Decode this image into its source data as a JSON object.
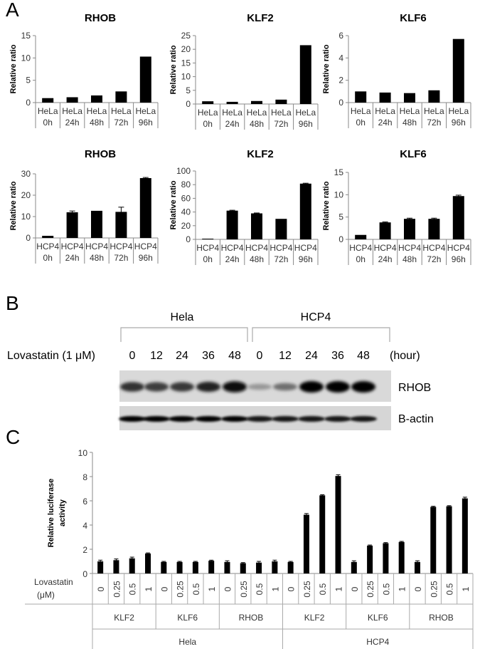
{
  "panels": {
    "a": "A",
    "b": "B",
    "c": "C"
  },
  "chart_data": [
    {
      "type": "bar",
      "title": "RHOB",
      "ylabel": "Relative ratio",
      "ylim": [
        0,
        15
      ],
      "yticks": [
        0,
        5,
        10,
        15
      ],
      "categories": [
        [
          "HeLa",
          "0h"
        ],
        [
          "HeLa",
          "24h"
        ],
        [
          "HeLa",
          "48h"
        ],
        [
          "HeLa",
          "72h"
        ],
        [
          "HeLa",
          "96h"
        ]
      ],
      "values": [
        1.0,
        1.2,
        1.6,
        2.5,
        10.3
      ],
      "errors": [
        0,
        0,
        0,
        0,
        0
      ]
    },
    {
      "type": "bar",
      "title": "KLF2",
      "ylabel": "Relative ratio",
      "ylim": [
        0,
        25
      ],
      "yticks": [
        0,
        5,
        10,
        15,
        20,
        25
      ],
      "categories": [
        [
          "HeLa",
          "0h"
        ],
        [
          "HeLa",
          "24h"
        ],
        [
          "HeLa",
          "48h"
        ],
        [
          "HeLa",
          "72h"
        ],
        [
          "HeLa",
          "96h"
        ]
      ],
      "values": [
        1.0,
        0.8,
        1.1,
        1.6,
        21.5
      ],
      "errors": [
        0,
        0,
        0,
        0,
        0
      ]
    },
    {
      "type": "bar",
      "title": "KLF6",
      "ylabel": "Relative ratio",
      "ylim": [
        0,
        6
      ],
      "yticks": [
        0,
        2,
        4,
        6
      ],
      "categories": [
        [
          "HeLa",
          "0h"
        ],
        [
          "HeLa",
          "24h"
        ],
        [
          "HeLa",
          "48h"
        ],
        [
          "HeLa",
          "72h"
        ],
        [
          "HeLa",
          "96h"
        ]
      ],
      "values": [
        1.0,
        0.9,
        0.85,
        1.1,
        5.7
      ],
      "errors": [
        0,
        0,
        0,
        0,
        0
      ]
    },
    {
      "type": "bar",
      "title": "RHOB",
      "ylabel": "Relative ratio",
      "ylim": [
        0,
        30
      ],
      "yticks": [
        0,
        10,
        20,
        30
      ],
      "categories": [
        [
          "HCP4",
          "0h"
        ],
        [
          "HCP4",
          "24h"
        ],
        [
          "HCP4",
          "48h"
        ],
        [
          "HCP4",
          "72h"
        ],
        [
          "HCP4",
          "96h"
        ]
      ],
      "values": [
        1.0,
        12.0,
        12.7,
        12.2,
        28.0
      ],
      "errors": [
        0,
        0.6,
        0,
        2.2,
        0.3
      ]
    },
    {
      "type": "bar",
      "title": "KLF2",
      "ylabel": "Relative ratio",
      "ylim": [
        0,
        100
      ],
      "yticks": [
        0,
        20,
        40,
        60,
        80,
        100
      ],
      "categories": [
        [
          "HCP4",
          "0h"
        ],
        [
          "HCP4",
          "24h"
        ],
        [
          "HCP4",
          "48h"
        ],
        [
          "HCP4",
          "72h"
        ],
        [
          "HCP4",
          "96h"
        ]
      ],
      "values": [
        1.0,
        42.0,
        38.0,
        30.0,
        81.5
      ],
      "errors": [
        0,
        0.6,
        0.6,
        0,
        0.6
      ]
    },
    {
      "type": "bar",
      "title": "KLF6",
      "ylabel": "Relative ratio",
      "ylim": [
        0,
        15
      ],
      "yticks": [
        0,
        5,
        10,
        15
      ],
      "categories": [
        [
          "HCP4",
          "0h"
        ],
        [
          "HCP4",
          "24h"
        ],
        [
          "HCP4",
          "48h"
        ],
        [
          "HCP4",
          "72h"
        ],
        [
          "HCP4",
          "96h"
        ]
      ],
      "values": [
        1.0,
        3.8,
        4.6,
        4.6,
        9.7
      ],
      "errors": [
        0,
        0.1,
        0.15,
        0.15,
        0.2
      ]
    },
    {
      "type": "bar",
      "title": "",
      "ylabel": "Relative luciferase activity",
      "ylim": [
        0,
        10
      ],
      "yticks": [
        0,
        2,
        4,
        6,
        8,
        10
      ],
      "row_label": "Lovastatin (μM)",
      "doses": [
        "0",
        "0.25",
        "0.5",
        "1",
        "0",
        "0.25",
        "0.5",
        "1",
        "0",
        "0.25",
        "0.5",
        "1",
        "0",
        "0.25",
        "0.5",
        "1",
        "0",
        "0.25",
        "0.5",
        "1",
        "0",
        "0.25",
        "0.5",
        "1"
      ],
      "genes": [
        "KLF2",
        "KLF6",
        "RHOB",
        "KLF2",
        "KLF6",
        "RHOB"
      ],
      "cells": [
        "Hela",
        "HCP4"
      ],
      "values": [
        1.0,
        1.1,
        1.25,
        1.65,
        0.95,
        0.95,
        0.95,
        1.05,
        0.95,
        0.85,
        0.9,
        1.0,
        0.95,
        4.85,
        6.45,
        8.05,
        0.95,
        2.3,
        2.5,
        2.6,
        0.95,
        5.5,
        5.55,
        6.2
      ],
      "errors": [
        0.1,
        0.1,
        0.1,
        0.05,
        0.05,
        0.05,
        0.05,
        0.05,
        0.1,
        0.05,
        0.1,
        0.1,
        0.05,
        0.1,
        0.05,
        0.1,
        0.1,
        0.05,
        0.05,
        0.05,
        0.1,
        0.05,
        0.05,
        0.1
      ]
    }
  ],
  "western": {
    "groups": [
      "Hela",
      "HCP4"
    ],
    "treatment_label": "Lovastatin (1 μM)",
    "timepoints": [
      "0",
      "12",
      "24",
      "36",
      "48",
      "0",
      "12",
      "24",
      "36",
      "48"
    ],
    "unit": "(hour)",
    "bands": [
      "RHOB",
      "B-actin"
    ],
    "rhob_intensity": [
      0.75,
      0.7,
      0.72,
      0.82,
      0.95,
      0.25,
      0.45,
      1.0,
      1.0,
      1.0
    ],
    "actin_intensity": [
      1,
      1,
      1,
      1,
      1,
      0.9,
      0.9,
      0.9,
      0.9,
      0.9
    ]
  }
}
